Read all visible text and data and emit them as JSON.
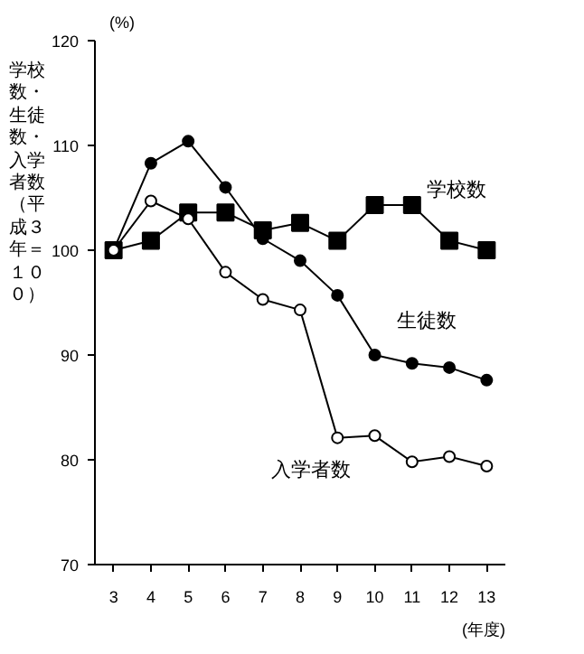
{
  "chart_data": {
    "type": "line",
    "ylabel": "学校数・生徒数・入学者数（平成３年＝１００）",
    "xlabel": "(年度)",
    "annotations": [
      "(%)"
    ],
    "x": [
      3,
      4,
      5,
      6,
      7,
      8,
      9,
      10,
      11,
      12,
      13
    ],
    "xlim": [
      2.5,
      13.5
    ],
    "xticks": [
      3,
      4,
      5,
      6,
      7,
      8,
      9,
      10,
      11,
      12,
      13
    ],
    "ylim": [
      70,
      120
    ],
    "yticks": [
      70,
      80,
      90,
      100,
      110,
      120
    ],
    "grid": false,
    "legend": false,
    "line_style": "solid",
    "series": [
      {
        "name": "学校数",
        "color": "#000000",
        "marker": "square",
        "values": [
          100,
          100.9,
          103.6,
          103.6,
          101.9,
          102.6,
          100.9,
          104.3,
          104.3,
          100.9,
          100
        ]
      },
      {
        "name": "生徒数",
        "color": "#000000",
        "marker": "circle",
        "values": [
          100,
          108.3,
          110.4,
          106,
          101.1,
          99.0,
          95.7,
          90.0,
          89.2,
          88.8,
          87.6
        ]
      },
      {
        "name": "入学者数",
        "color": "#000000",
        "marker": "circle",
        "values": [
          100,
          104.7,
          103.0,
          97.9,
          95.3,
          94.3,
          82.1,
          82.3,
          79.8,
          80.3,
          79.4
        ]
      }
    ]
  }
}
